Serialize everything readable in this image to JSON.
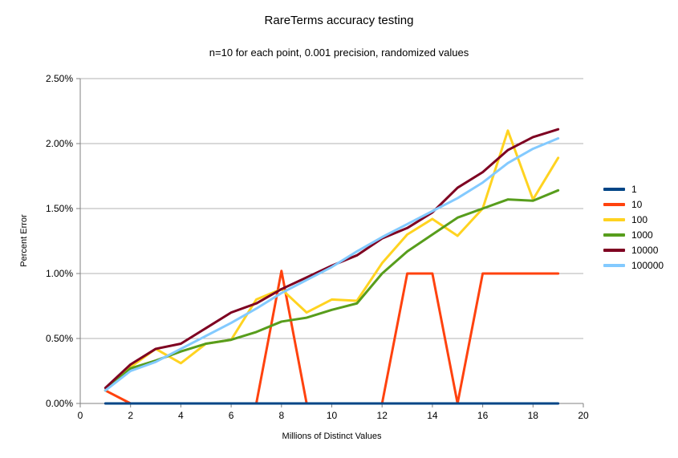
{
  "chart_data": {
    "type": "line",
    "title": "RareTerms accuracy testing",
    "subtitle": "n=10 for each point, 0.001 precision, randomized values",
    "xlabel": "Millions of Distinct Values",
    "ylabel": "Percent Error",
    "xlim": [
      0,
      20
    ],
    "ylim": [
      0,
      2.5
    ],
    "grid": true,
    "legend_position": "right",
    "grid_color": "#b3b3b3",
    "axis_color": "#808080",
    "xticks": [
      {
        "value": 0,
        "label": "0"
      },
      {
        "value": 2,
        "label": "2"
      },
      {
        "value": 4,
        "label": "4"
      },
      {
        "value": 6,
        "label": "6"
      },
      {
        "value": 8,
        "label": "8"
      },
      {
        "value": 10,
        "label": "10"
      },
      {
        "value": 12,
        "label": "12"
      },
      {
        "value": 14,
        "label": "14"
      },
      {
        "value": 16,
        "label": "16"
      },
      {
        "value": 18,
        "label": "18"
      },
      {
        "value": 20,
        "label": "20"
      }
    ],
    "yticks": [
      {
        "value": 0.0,
        "label": "0.00%"
      },
      {
        "value": 0.5,
        "label": "0.50%"
      },
      {
        "value": 1.0,
        "label": "1.00%"
      },
      {
        "value": 1.5,
        "label": "1.50%"
      },
      {
        "value": 2.0,
        "label": "2.00%"
      },
      {
        "value": 2.5,
        "label": "2.50%"
      }
    ],
    "x": [
      1,
      2,
      3,
      4,
      5,
      6,
      7,
      8,
      9,
      10,
      11,
      12,
      13,
      14,
      15,
      16,
      17,
      18,
      19
    ],
    "series": [
      {
        "name": "1",
        "color": "#004586",
        "values": [
          0.0,
          0.0,
          0.0,
          0.0,
          0.0,
          0.0,
          0.0,
          0.0,
          0.0,
          0.0,
          0.0,
          0.0,
          0.0,
          0.0,
          0.0,
          0.0,
          0.0,
          0.0,
          0.0
        ]
      },
      {
        "name": "10",
        "color": "#ff420e",
        "values": [
          0.1,
          0.0,
          0.0,
          0.0,
          0.0,
          0.0,
          0.0,
          1.02,
          0.0,
          0.0,
          0.0,
          0.0,
          1.0,
          1.0,
          0.0,
          1.0,
          1.0,
          1.0,
          1.0
        ]
      },
      {
        "name": "100",
        "color": "#ffd320",
        "values": [
          0.1,
          0.28,
          0.42,
          0.31,
          0.46,
          0.49,
          0.8,
          0.88,
          0.7,
          0.8,
          0.79,
          1.08,
          1.3,
          1.42,
          1.29,
          1.5,
          2.1,
          1.57,
          1.89
        ]
      },
      {
        "name": "1000",
        "color": "#579d1c",
        "values": [
          0.1,
          0.27,
          0.33,
          0.4,
          0.46,
          0.49,
          0.55,
          0.63,
          0.66,
          0.72,
          0.77,
          1.0,
          1.17,
          1.3,
          1.43,
          1.5,
          1.57,
          1.56,
          1.64
        ]
      },
      {
        "name": "10000",
        "color": "#7e0021",
        "values": [
          0.12,
          0.3,
          0.42,
          0.46,
          0.58,
          0.7,
          0.77,
          0.88,
          0.97,
          1.06,
          1.14,
          1.27,
          1.35,
          1.47,
          1.66,
          1.78,
          1.95,
          2.05,
          2.11
        ]
      },
      {
        "name": "100000",
        "color": "#83caff",
        "values": [
          0.1,
          0.25,
          0.32,
          0.42,
          0.52,
          0.62,
          0.73,
          0.85,
          0.95,
          1.05,
          1.17,
          1.28,
          1.38,
          1.48,
          1.58,
          1.7,
          1.85,
          1.96,
          2.04
        ]
      }
    ]
  }
}
